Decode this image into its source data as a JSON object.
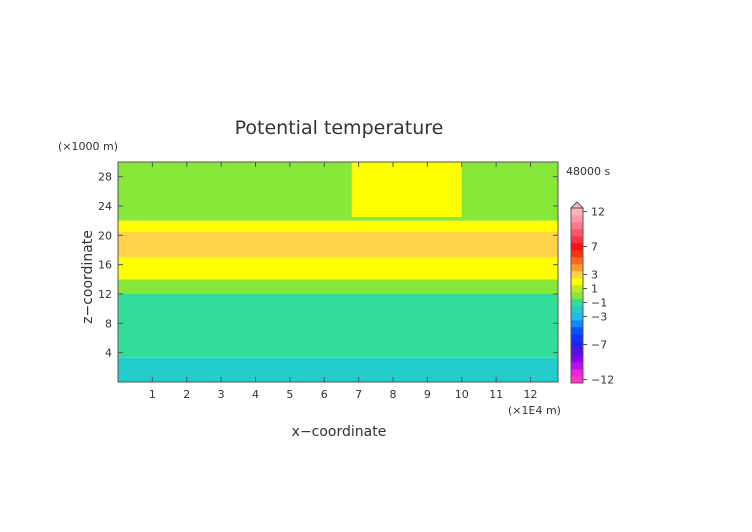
{
  "chart_data": {
    "type": "heatmap",
    "title": "Potential temperature",
    "xlabel": "x−coordinate",
    "ylabel": "z−coordinate",
    "x_unit": "(×1E4 m)",
    "y_unit": "(×1000 m)",
    "time_label": "48000 s",
    "xlim": [
      0,
      12.8
    ],
    "ylim": [
      0,
      30
    ],
    "x_ticks": [
      1,
      2,
      3,
      4,
      5,
      6,
      7,
      8,
      9,
      10,
      11,
      12
    ],
    "y_ticks": [
      4,
      8,
      12,
      16,
      20,
      24,
      28
    ],
    "colorbar": {
      "levels": [
        -12,
        -11,
        -10,
        -9,
        -8,
        -7,
        -6,
        -5,
        -4,
        -3,
        -2,
        -1,
        0,
        1,
        2,
        3,
        4,
        5,
        6,
        7,
        8,
        9,
        10,
        11,
        12
      ],
      "tick_labels": [
        "12",
        "7",
        "3",
        "1",
        "−1",
        "−3",
        "−7",
        "−12"
      ],
      "tick_values": [
        12,
        7,
        3,
        1,
        -1,
        -3,
        -7,
        -12
      ],
      "colors": {
        "-12": "#ff33cc",
        "-11": "#ee22dd",
        "-10": "#bb11ee",
        "-9": "#8800ee",
        "-8": "#5511dd",
        "-7": "#2222ee",
        "-6": "#1133ff",
        "-5": "#0055ff",
        "-4": "#1188ff",
        "-3": "#22bbee",
        "-2": "#22cccc",
        "-1": "#33dd99",
        "0": "#88e83a",
        "1": "#bbee22",
        "2": "#ffff00",
        "3": "#ffd24a",
        "4": "#ff9a2a",
        "5": "#ff6622",
        "6": "#ff3311",
        "7": "#ff1111",
        "8": "#ff3344",
        "9": "#ff5566",
        "10": "#ff7788",
        "11": "#ff99aa",
        "12": "#ffb3b3"
      }
    },
    "field_regions": [
      {
        "value": -2,
        "z_range": [
          0,
          3.3
        ]
      },
      {
        "value": -1,
        "z_range": [
          3.3,
          12.0
        ]
      },
      {
        "value": 0,
        "z_range": [
          12.0,
          14.0
        ]
      },
      {
        "value": 2,
        "z_range": [
          14.0,
          17.0
        ]
      },
      {
        "value": 3,
        "z_range": [
          17.0,
          20.5
        ]
      },
      {
        "value": 2,
        "z_range": [
          20.5,
          22.0
        ]
      },
      {
        "value": 0,
        "z_range": [
          22.0,
          30.0
        ]
      },
      {
        "value": 2,
        "z_range": [
          22.5,
          30.0
        ],
        "x_range": [
          6.8,
          10.0
        ]
      }
    ]
  }
}
